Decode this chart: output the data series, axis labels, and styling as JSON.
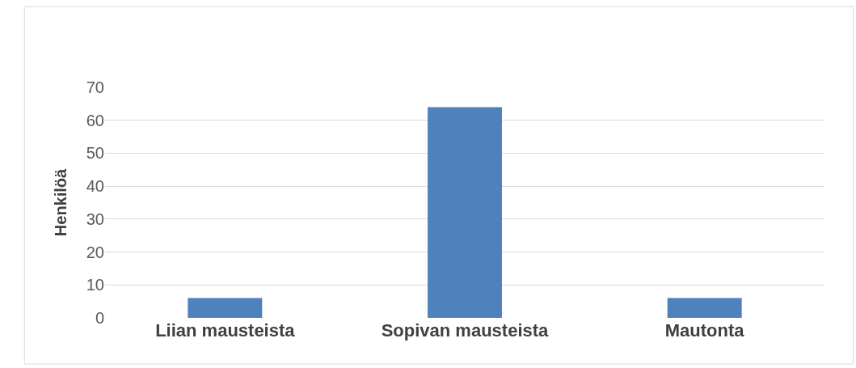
{
  "chart_data": {
    "type": "bar",
    "ylabel": "Henkilöä",
    "categories": [
      "Liian mausteista",
      "Sopivan mausteista",
      "Mautonta"
    ],
    "values": [
      6,
      64,
      6
    ],
    "color": "#4f81bd",
    "ylim": [
      0,
      70
    ],
    "yticks": [
      0,
      10,
      20,
      30,
      40,
      50,
      60,
      70
    ],
    "grid": "y"
  }
}
